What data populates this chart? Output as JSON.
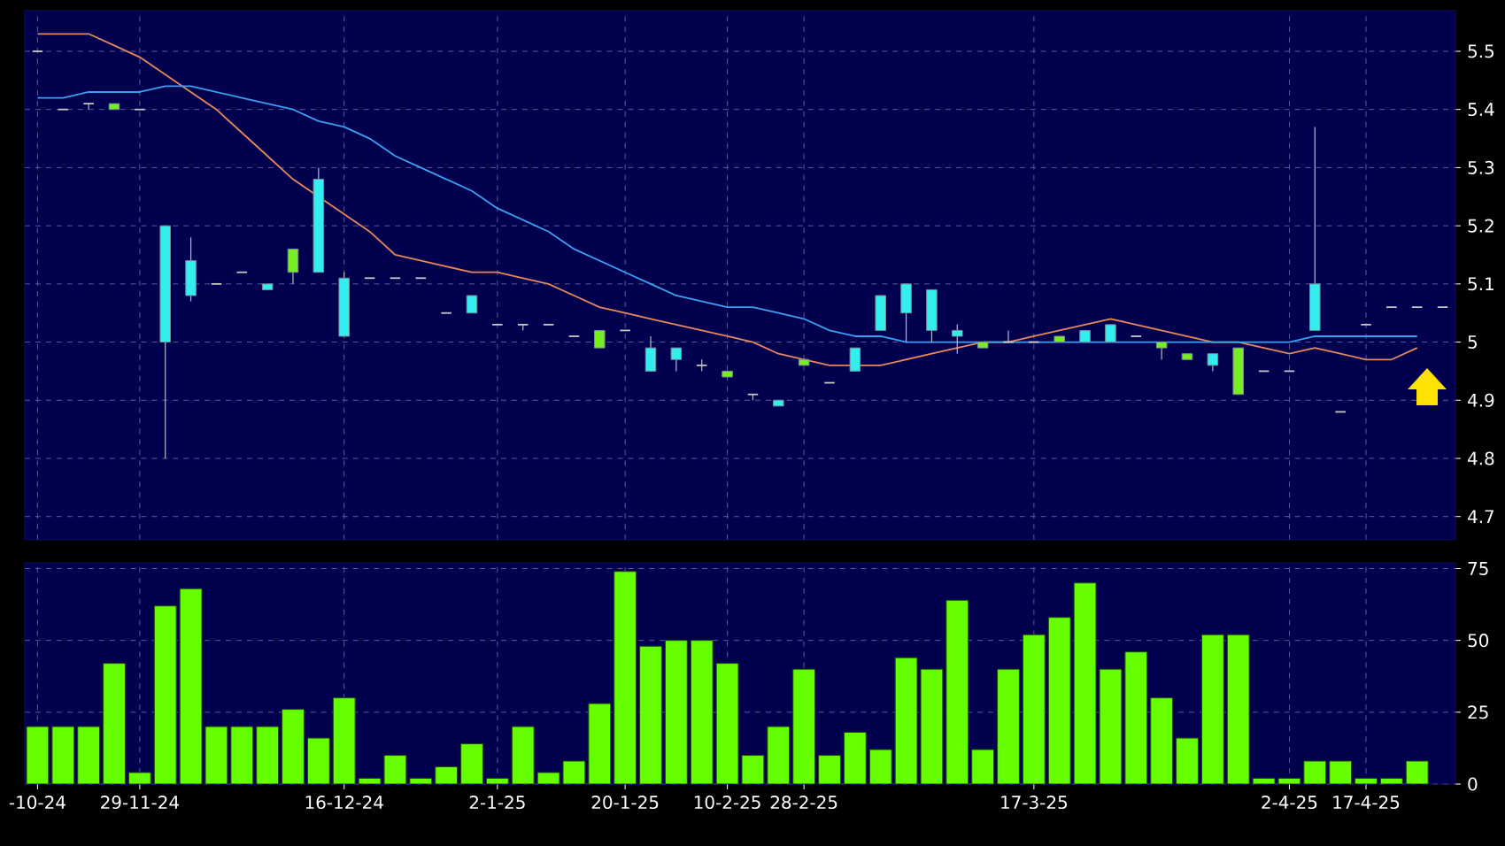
{
  "chart_data": [
    {
      "type": "candlestick",
      "categories": [
        null,
        null,
        null,
        null,
        null,
        null,
        null,
        null,
        null,
        null,
        null,
        null,
        null,
        null,
        null,
        null,
        null,
        null,
        null,
        null,
        null,
        null,
        null,
        null,
        null,
        null,
        null,
        null,
        null,
        null,
        null,
        null,
        null,
        null,
        null,
        null,
        null,
        null,
        null,
        null,
        null,
        null,
        null,
        null,
        null,
        null,
        null,
        null,
        null,
        null,
        null,
        null,
        null,
        null,
        null,
        null
      ],
      "ohlc": [
        [
          5.5,
          5.5,
          5.5,
          5.5
        ],
        [
          5.4,
          5.4,
          5.4,
          5.4
        ],
        [
          5.41,
          5.41,
          5.4,
          5.41
        ],
        [
          5.4,
          5.41,
          5.4,
          5.41
        ],
        [
          5.4,
          5.4,
          5.4,
          5.4
        ],
        [
          5.2,
          5.2,
          4.8,
          5.0
        ],
        [
          5.14,
          5.18,
          5.07,
          5.08
        ],
        [
          5.1,
          5.1,
          5.1,
          5.1
        ],
        [
          5.12,
          5.12,
          5.12,
          5.12
        ],
        [
          5.1,
          5.1,
          5.09,
          5.09
        ],
        [
          5.12,
          5.16,
          5.1,
          5.16
        ],
        [
          5.28,
          5.3,
          5.12,
          5.12
        ],
        [
          5.11,
          5.12,
          5.01,
          5.01
        ],
        [
          5.11,
          5.11,
          5.11,
          5.11
        ],
        [
          5.11,
          5.11,
          5.11,
          5.11
        ],
        [
          5.11,
          5.11,
          5.11,
          5.11
        ],
        [
          5.05,
          5.05,
          5.05,
          5.05
        ],
        [
          5.08,
          5.08,
          5.05,
          5.05
        ],
        [
          5.03,
          5.03,
          5.03,
          5.03
        ],
        [
          5.03,
          5.03,
          5.02,
          5.03
        ],
        [
          5.03,
          5.03,
          5.03,
          5.03
        ],
        [
          5.01,
          5.01,
          5.01,
          5.01
        ],
        [
          4.99,
          5.02,
          4.99,
          5.02
        ],
        [
          5.02,
          5.02,
          5.02,
          5.02
        ],
        [
          4.99,
          5.01,
          4.95,
          4.95
        ],
        [
          4.99,
          4.99,
          4.95,
          4.97
        ],
        [
          4.96,
          4.97,
          4.95,
          4.96
        ],
        [
          4.94,
          4.95,
          4.94,
          4.95
        ],
        [
          4.91,
          4.91,
          4.9,
          4.91
        ],
        [
          4.9,
          4.9,
          4.89,
          4.89
        ],
        [
          4.96,
          4.97,
          4.96,
          4.97
        ],
        [
          4.93,
          4.93,
          4.93,
          4.93
        ],
        [
          4.99,
          4.99,
          4.95,
          4.95
        ],
        [
          5.08,
          5.08,
          5.02,
          5.02
        ],
        [
          5.1,
          5.1,
          5.0,
          5.05
        ],
        [
          5.09,
          5.09,
          5.0,
          5.02
        ],
        [
          5.02,
          5.03,
          4.98,
          5.01
        ],
        [
          4.99,
          5.0,
          4.99,
          5.0
        ],
        [
          5.0,
          5.02,
          5.0,
          5.0
        ],
        [
          5.0,
          5.0,
          5.0,
          5.0
        ],
        [
          5.0,
          5.01,
          5.0,
          5.01
        ],
        [
          5.02,
          5.02,
          5.0,
          5.0
        ],
        [
          5.03,
          5.03,
          5.0,
          5.0
        ],
        [
          5.01,
          5.01,
          5.01,
          5.01
        ],
        [
          4.99,
          5.0,
          4.97,
          5.0
        ],
        [
          4.97,
          4.98,
          4.97,
          4.98
        ],
        [
          4.98,
          4.98,
          4.95,
          4.96
        ],
        [
          4.91,
          4.99,
          4.91,
          4.99
        ],
        [
          4.95,
          4.95,
          4.95,
          4.95
        ],
        [
          4.95,
          4.95,
          4.95,
          4.95
        ],
        [
          5.1,
          5.37,
          5.02,
          5.02
        ],
        [
          4.88,
          4.88,
          4.88,
          4.88
        ],
        [
          5.03,
          5.03,
          5.03,
          5.03
        ],
        [
          5.06,
          5.06,
          5.06,
          5.06
        ],
        [
          5.06,
          5.06,
          5.06,
          5.06
        ],
        [
          5.06,
          5.06,
          5.06,
          5.06
        ]
      ],
      "colors": [
        "#c8c8c8",
        "#c8c8c8",
        "#c8c8c8",
        "#77ee22",
        "#c8c8c8",
        "#33eeee",
        "#33eeee",
        "#c8c8c8",
        "#c8c8c8",
        "#33eeee",
        "#77ee22",
        "#33eeee",
        "#33eeee",
        "#c8c8c8",
        "#c8c8c8",
        "#c8c8c8",
        "#c8c8c8",
        "#33eeee",
        "#c8c8c8",
        "#c8c8c8",
        "#c8c8c8",
        "#c8c8c8",
        "#77ee22",
        "#c8c8c8",
        "#33eeee",
        "#33eeee",
        "#c8c8c8",
        "#77ee22",
        "#c8c8c8",
        "#33eeee",
        "#77ee22",
        "#c8c8c8",
        "#33eeee",
        "#33eeee",
        "#33eeee",
        "#33eeee",
        "#33eeee",
        "#77ee22",
        "#c8c8c8",
        "#c8c8c8",
        "#77ee22",
        "#33eeee",
        "#33eeee",
        "#c8c8c8",
        "#77ee22",
        "#77ee22",
        "#33eeee",
        "#77ee22",
        "#c8c8c8",
        "#c8c8c8",
        "#33eeee",
        "#c8c8c8",
        "#c8c8c8",
        "#c8c8c8",
        "#c8c8c8",
        "#c8c8c8"
      ],
      "series": [
        {
          "type": "line",
          "color": "#e8875a",
          "values": [
            5.53,
            5.53,
            5.53,
            5.51,
            5.49,
            5.46,
            5.43,
            5.4,
            5.36,
            5.32,
            5.28,
            5.25,
            5.22,
            5.19,
            5.15,
            5.14,
            5.13,
            5.12,
            5.12,
            5.11,
            5.1,
            5.08,
            5.06,
            5.05,
            5.04,
            5.03,
            5.02,
            5.01,
            5.0,
            4.98,
            4.97,
            4.96,
            4.96,
            4.96,
            4.97,
            4.98,
            4.99,
            5.0,
            5.0,
            5.01,
            5.02,
            5.03,
            5.04,
            5.03,
            5.02,
            5.01,
            5.0,
            5.0,
            4.99,
            4.98,
            4.99,
            4.98,
            4.97,
            4.97,
            4.99,
            null
          ]
        },
        {
          "type": "line",
          "color": "#3aa0f0",
          "values": [
            5.42,
            5.42,
            5.43,
            5.43,
            5.43,
            5.44,
            5.44,
            5.43,
            5.42,
            5.41,
            5.4,
            5.38,
            5.37,
            5.35,
            5.32,
            5.3,
            5.28,
            5.26,
            5.23,
            5.21,
            5.19,
            5.16,
            5.14,
            5.12,
            5.1,
            5.08,
            5.07,
            5.06,
            5.06,
            5.05,
            5.04,
            5.02,
            5.01,
            5.01,
            5.0,
            5.0,
            5.0,
            5.0,
            5.0,
            5.0,
            5.0,
            5.0,
            5.0,
            5.0,
            5.0,
            5.0,
            5.0,
            5.0,
            5.0,
            5.0,
            5.01,
            5.01,
            5.01,
            5.01,
            5.01,
            null
          ]
        }
      ],
      "ylim": [
        4.66,
        5.57
      ],
      "yticks": [
        4.7,
        4.8,
        4.9,
        5,
        5.1,
        5.2,
        5.3,
        5.4,
        5.5
      ],
      "grid": true,
      "tick_labels": "y"
    },
    {
      "type": "bar",
      "categories": [
        "-10-24",
        null,
        null,
        null,
        "29-11-24",
        null,
        null,
        null,
        null,
        null,
        null,
        null,
        "16-12-24",
        null,
        null,
        null,
        null,
        null,
        "2-1-25",
        null,
        null,
        null,
        null,
        "20-1-25",
        null,
        null,
        null,
        "10-2-25",
        null,
        null,
        "28-2-25",
        null,
        null,
        null,
        null,
        null,
        null,
        null,
        null,
        "17-3-25",
        null,
        null,
        null,
        null,
        null,
        null,
        null,
        null,
        null,
        "2-4-25",
        null,
        null,
        "17-4-25",
        null,
        null,
        null
      ],
      "values": [
        20,
        20,
        20,
        42,
        4,
        62,
        68,
        20,
        20,
        20,
        26,
        16,
        30,
        2,
        10,
        2,
        6,
        14,
        2,
        20,
        4,
        8,
        28,
        74,
        48,
        50,
        50,
        42,
        10,
        20,
        40,
        10,
        18,
        12,
        44,
        40,
        64,
        12,
        40,
        52,
        58,
        70,
        40,
        46,
        30,
        16,
        52,
        52,
        2,
        2,
        8,
        8,
        2,
        2,
        8,
        null
      ],
      "color": "#66ff00",
      "ylim": [
        0,
        77
      ],
      "yticks": [
        0,
        25,
        50,
        75
      ],
      "grid": true
    }
  ]
}
